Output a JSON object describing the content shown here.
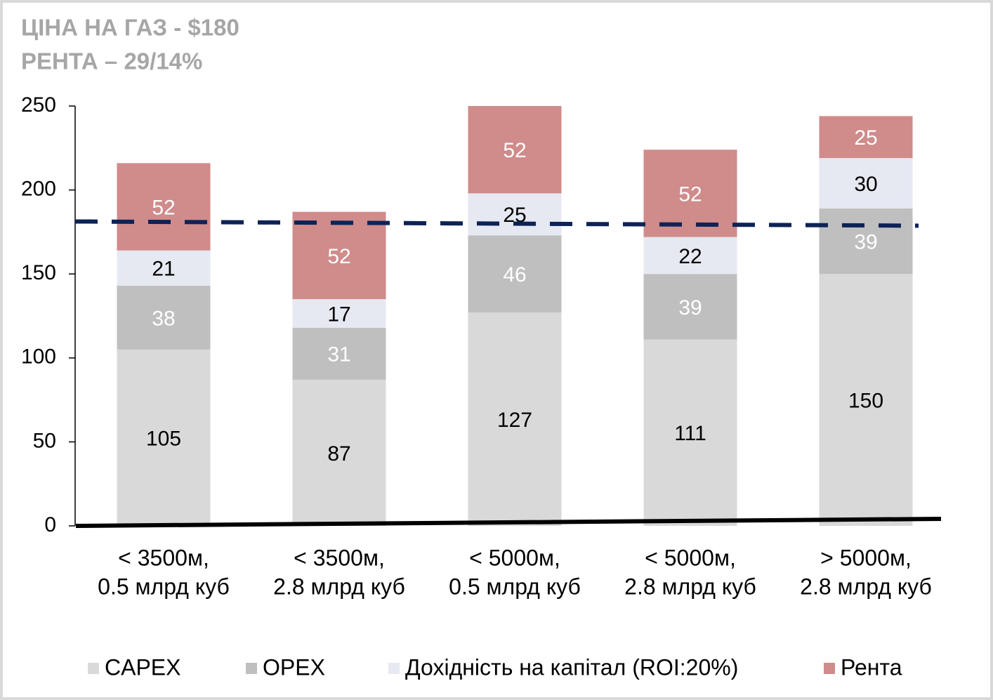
{
  "chart_data": {
    "type": "stacked_bar",
    "title": [
      "ЦІНА НА ГАЗ - $180",
      "РЕНТА – 29/14%"
    ],
    "categories": [
      [
        "< 3500м,",
        "0.5 млрд куб"
      ],
      [
        "< 3500м,",
        "2.8 млрд куб"
      ],
      [
        "< 5000м,",
        "0.5 млрд куб"
      ],
      [
        "< 5000м,",
        "2.8 млрд куб"
      ],
      [
        "> 5000м,",
        "2.8 млрд куб"
      ]
    ],
    "series": [
      {
        "name": "CAPEX",
        "color": "#d9d9d9",
        "label_color": "#000000",
        "values": [
          105,
          87,
          127,
          111,
          150
        ]
      },
      {
        "name": "OPEX",
        "color": "#bfbfbf",
        "label_color": "#ffffff",
        "values": [
          38,
          31,
          46,
          39,
          39
        ]
      },
      {
        "name": "Дохідність на капітал (ROI:20%)",
        "color": "#e6e9f2",
        "label_color": "#000000",
        "values": [
          21,
          17,
          25,
          22,
          30
        ]
      },
      {
        "name": "Рента",
        "color": "#d08b8b",
        "label_color": "#ffffff",
        "values": [
          52,
          52,
          52,
          52,
          25
        ]
      }
    ],
    "ylim": [
      0,
      250
    ],
    "yticks": [
      0,
      50,
      100,
      150,
      200,
      250
    ],
    "reference_line": 180,
    "reference_color": "#0d2356",
    "legend": "bottom"
  }
}
